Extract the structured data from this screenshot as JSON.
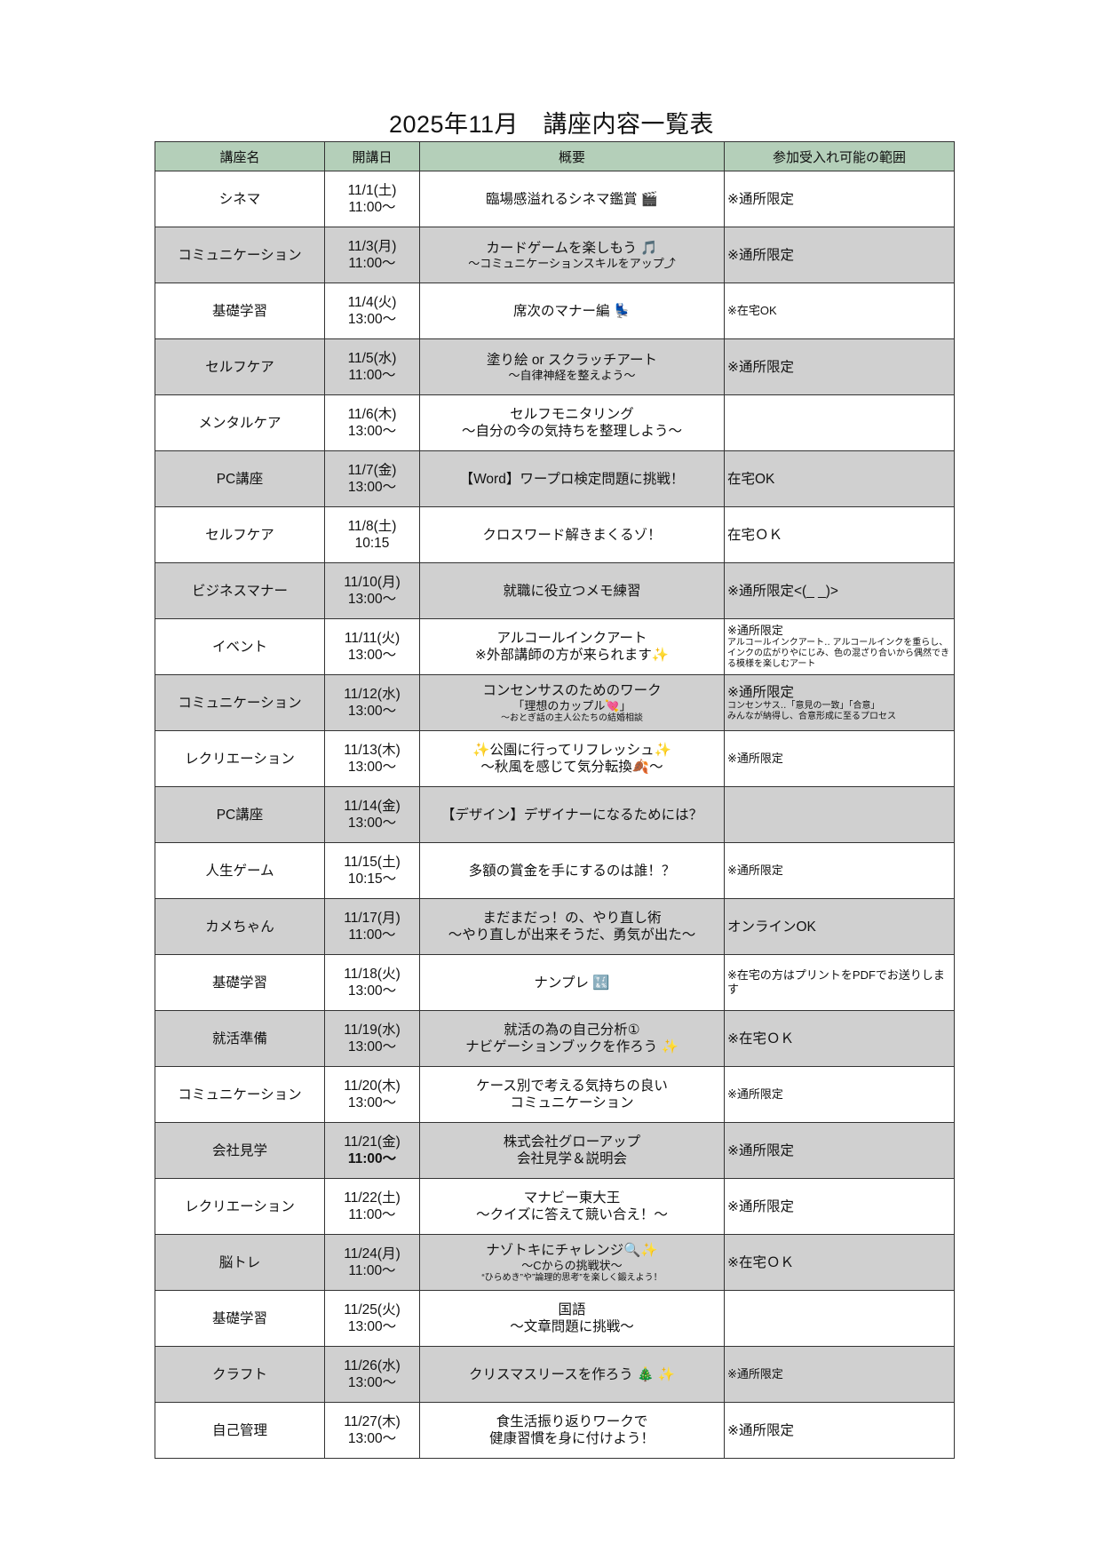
{
  "title": "2025年11月　講座内容一覧表",
  "headers": [
    "講座名",
    "開講日",
    "概要",
    "参加受入れ可能の範囲"
  ],
  "colors": {
    "header_bg": "#b4cfb9",
    "shaded_row": "#d0d0d0",
    "border": "#333333"
  },
  "rows": [
    {
      "name": "シネマ",
      "date": [
        "11/1(土)",
        "11:00〜"
      ],
      "summary": [
        {
          "t": "臨場感溢れるシネマ鑑賞 🎬"
        }
      ],
      "scope": [
        {
          "t": "※通所限定"
        }
      ]
    },
    {
      "name": "コミュニケーション",
      "date": [
        "11/3(月)",
        "11:00〜"
      ],
      "summary": [
        {
          "t": "カードゲームを楽しもう 🎵"
        },
        {
          "t": "〜コミュニケーションスキルをアップ⤴",
          "s": "sm"
        }
      ],
      "scope": [
        {
          "t": "※通所限定"
        }
      ]
    },
    {
      "name": "基礎学習",
      "date": [
        "11/4(火)",
        "13:00〜"
      ],
      "summary": [
        {
          "t": "席次のマナー編 💺"
        }
      ],
      "scope": [
        {
          "t": "※在宅OK",
          "s": "sm"
        }
      ]
    },
    {
      "name": "セルフケア",
      "date": [
        "11/5(水)",
        "11:00〜"
      ],
      "summary": [
        {
          "t": "塗り絵 or スクラッチアート"
        },
        {
          "t": "〜自律神経を整えよう〜",
          "s": "sm"
        }
      ],
      "scope": [
        {
          "t": "※通所限定"
        }
      ]
    },
    {
      "name": "メンタルケア",
      "date": [
        "11/6(木)",
        "13:00〜"
      ],
      "summary": [
        {
          "t": "セルフモニタリング"
        },
        {
          "t": "〜自分の今の気持ちを整理しよう〜"
        }
      ],
      "scope": []
    },
    {
      "name": "PC講座",
      "date": [
        "11/7(金)",
        "13:00〜"
      ],
      "summary": [
        {
          "t": "【Word】ワープロ検定問題に挑戦！"
        }
      ],
      "scope": [
        {
          "t": "在宅OK"
        }
      ]
    },
    {
      "name": "セルフケア",
      "date": [
        "11/8(土)",
        "10:15"
      ],
      "summary": [
        {
          "t": "クロスワード解きまくるゾ！"
        }
      ],
      "scope": [
        {
          "t": "在宅ＯＫ"
        }
      ]
    },
    {
      "name": "ビジネスマナー",
      "date": [
        "11/10(月)",
        "13:00〜"
      ],
      "summary": [
        {
          "t": "就職に役立つメモ練習"
        }
      ],
      "scope": [
        {
          "t": "※通所限定<(_ _)>"
        }
      ]
    },
    {
      "name": "イベント",
      "date": [
        "11/11(火)",
        "13:00〜"
      ],
      "summary": [
        {
          "t": "アルコールインクアート"
        },
        {
          "t": "※外部講師の方が来られます✨"
        }
      ],
      "scope": [
        {
          "t": "※通所限定",
          "s": "sm"
        },
        {
          "t": "アルコールインクアート‥ アルコールインクを重らし、インクの広がりやにじみ、色の混ざり合いから偶然できる模様を楽しむアート",
          "s": "xs"
        }
      ]
    },
    {
      "name": "コミュニケーション",
      "date": [
        "11/12(水)",
        "13:00〜"
      ],
      "summary": [
        {
          "t": "コンセンサスのためのワーク"
        },
        {
          "t": "「理想のカップル💘」",
          "s": "sm"
        },
        {
          "t": "〜おとぎ話の主人公たちの結婚相談",
          "s": "xs"
        }
      ],
      "scope": [
        {
          "t": "※通所限定"
        },
        {
          "t": "コンセンサス‥「意見の一致」「合意」",
          "s": "xs"
        },
        {
          "t": "みんなが納得し、合意形成に至るプロセス",
          "s": "xs"
        }
      ]
    },
    {
      "name": "レクリエーション",
      "date": [
        "11/13(木)",
        "13:00〜"
      ],
      "summary": [
        {
          "t": "✨公園に行ってリフレッシュ✨"
        },
        {
          "t": "〜秋風を感じて気分転換🍂〜"
        }
      ],
      "scope": [
        {
          "t": "※通所限定",
          "s": "sm"
        }
      ]
    },
    {
      "name": "PC講座",
      "date": [
        "11/14(金)",
        "13:00〜"
      ],
      "summary": [
        {
          "t": "【デザイン】デザイナーになるためには？"
        }
      ],
      "scope": []
    },
    {
      "name": "人生ゲーム",
      "date": [
        "11/15(土)",
        "10:15〜"
      ],
      "summary": [
        {
          "t": "多額の賞金を手にするのは誰！？"
        }
      ],
      "scope": [
        {
          "t": "※通所限定",
          "s": "sm"
        }
      ]
    },
    {
      "name": "カメちゃん",
      "date": [
        "11/17(月)",
        "11:00〜"
      ],
      "summary": [
        {
          "t": "まだまだっ！の、やり直し術"
        },
        {
          "t": "〜やり直しが出来そうだ、勇気が出た〜"
        }
      ],
      "scope": [
        {
          "t": "オンラインOK"
        }
      ]
    },
    {
      "name": "基礎学習",
      "date": [
        "11/18(火)",
        "13:00〜"
      ],
      "summary": [
        {
          "t": "ナンプレ 🔣"
        }
      ],
      "scope": [
        {
          "t": "※在宅の方はプリントをPDFでお送りします",
          "s": "sm"
        }
      ]
    },
    {
      "name": "就活準備",
      "date": [
        "11/19(水)",
        "13:00〜"
      ],
      "summary": [
        {
          "t": "就活の為の自己分析①"
        },
        {
          "t": "ナビゲーションブックを作ろう ✨"
        }
      ],
      "scope": [
        {
          "t": "※在宅ＯＫ"
        }
      ]
    },
    {
      "name": "コミュニケーション",
      "date": [
        "11/20(木)",
        "13:00〜"
      ],
      "summary": [
        {
          "t": "ケース別で考える気持ちの良い"
        },
        {
          "t": "コミュニケーション"
        }
      ],
      "scope": [
        {
          "t": "※通所限定",
          "s": "sm"
        }
      ]
    },
    {
      "name": "会社見学",
      "date": [
        "11/21(金)",
        "11:00〜"
      ],
      "date_bold_time": true,
      "summary": [
        {
          "t": "株式会社グローアップ"
        },
        {
          "t": "会社見学＆説明会"
        }
      ],
      "scope": [
        {
          "t": "※通所限定"
        }
      ]
    },
    {
      "name": "レクリエーション",
      "date": [
        "11/22(土)",
        "11:00〜"
      ],
      "summary": [
        {
          "t": "マナビー東大王"
        },
        {
          "t": "〜クイズに答えて競い合え！〜"
        }
      ],
      "scope": [
        {
          "t": "※通所限定"
        }
      ]
    },
    {
      "name": "脳トレ",
      "date": [
        "11/24(月)",
        "11:00〜"
      ],
      "summary": [
        {
          "t": "ナゾトキにチャレンジ🔍✨"
        },
        {
          "t": "〜Cからの挑戦状〜",
          "s": "sm"
        },
        {
          "t": "“ひらめき”や”論理的思考”を楽しく鍛えよう！",
          "s": "xs"
        }
      ],
      "scope": [
        {
          "t": "※在宅ＯＫ"
        }
      ]
    },
    {
      "name": "基礎学習",
      "date": [
        "11/25(火)",
        "13:00〜"
      ],
      "summary": [
        {
          "t": "国語"
        },
        {
          "t": "〜文章問題に挑戦〜"
        }
      ],
      "scope": []
    },
    {
      "name": "クラフト",
      "date": [
        "11/26(水)",
        "13:00〜"
      ],
      "summary": [
        {
          "t": "クリスマスリースを作ろう 🎄 ✨"
        }
      ],
      "scope": [
        {
          "t": "※通所限定",
          "s": "sm"
        }
      ]
    },
    {
      "name": "自己管理",
      "date": [
        "11/27(木)",
        "13:00〜"
      ],
      "summary": [
        {
          "t": "食生活振り返りワークで"
        },
        {
          "t": "健康習慣を身に付けよう！"
        }
      ],
      "scope": [
        {
          "t": "※通所限定"
        }
      ]
    }
  ]
}
